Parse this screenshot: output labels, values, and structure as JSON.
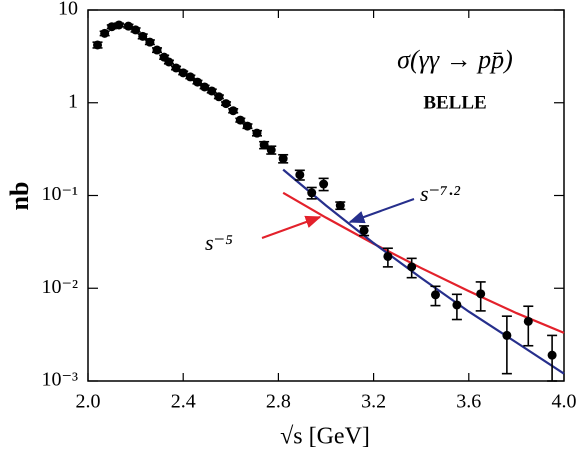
{
  "chart_data": {
    "type": "scatter",
    "title": "σ(γγ → pp̄)",
    "subtitle": "BELLE",
    "x_label": "√s [GeV]",
    "y_label": "nb",
    "yscale": "log",
    "color": "#000000",
    "x": [
      2.04,
      2.07,
      2.1,
      2.13,
      2.17,
      2.2,
      2.23,
      2.26,
      2.29,
      2.32,
      2.34,
      2.37,
      2.4,
      2.43,
      2.46,
      2.49,
      2.52,
      2.55,
      2.58,
      2.61,
      2.64,
      2.67,
      2.71,
      2.74,
      2.77,
      2.82,
      2.89,
      2.94,
      2.99,
      3.06,
      3.16,
      3.26,
      3.36,
      3.46,
      3.55,
      3.65,
      3.76,
      3.85,
      3.95
    ],
    "values": [
      4.2,
      5.6,
      6.6,
      6.9,
      6.7,
      6.1,
      5.2,
      4.5,
      3.7,
      3.1,
      2.75,
      2.37,
      2.1,
      1.9,
      1.67,
      1.48,
      1.34,
      1.16,
      0.98,
      0.82,
      0.65,
      0.56,
      0.47,
      0.35,
      0.31,
      0.25,
      0.167,
      0.107,
      0.133,
      0.078,
      0.042,
      0.022,
      0.017,
      0.0085,
      0.0066,
      0.0087,
      0.0031,
      0.0044,
      0.0019
    ],
    "errors": [
      0.3,
      0.3,
      0.3,
      0.3,
      0.3,
      0.3,
      0.3,
      0.25,
      0.2,
      0.15,
      0.12,
      0.1,
      0.09,
      0.08,
      0.07,
      0.06,
      0.06,
      0.05,
      0.04,
      0.04,
      0.03,
      0.03,
      0.03,
      0.03,
      0.03,
      0.025,
      0.02,
      0.015,
      0.02,
      0.007,
      0.005,
      0.005,
      0.004,
      0.002,
      0.002,
      0.003,
      0.0019,
      0.002,
      0.0012
    ],
    "series": [
      {
        "name": "s⁻⁵",
        "color": "#e3212b",
        "x": [
          2.82,
          3.0,
          3.2,
          3.4,
          3.6,
          3.8,
          4.0
        ],
        "values": [
          0.107,
          0.0577,
          0.0302,
          0.0165,
          0.0093,
          0.0054,
          0.0033
        ]
      },
      {
        "name": "s⁻⁷·²",
        "color": "#262f8c",
        "x": [
          2.82,
          3.0,
          3.2,
          3.4,
          3.6,
          3.8,
          4.0
        ],
        "values": [
          0.19,
          0.078,
          0.0307,
          0.0129,
          0.0056,
          0.0026,
          0.0012
        ]
      }
    ],
    "xlim": [
      2.0,
      4.0
    ],
    "xticks": [
      {
        "value": 2,
        "label": "2.0"
      },
      2.4,
      2.8,
      3.2,
      3.6,
      {
        "value": 4,
        "label": "4.0"
      }
    ],
    "ylim": [
      0.001,
      10
    ],
    "yticks": [
      {
        "value": 0.001,
        "label": "10⁻³"
      },
      {
        "value": 0.01,
        "label": "10⁻²"
      },
      {
        "value": 0.1,
        "label": "10⁻¹"
      },
      1,
      10
    ]
  }
}
